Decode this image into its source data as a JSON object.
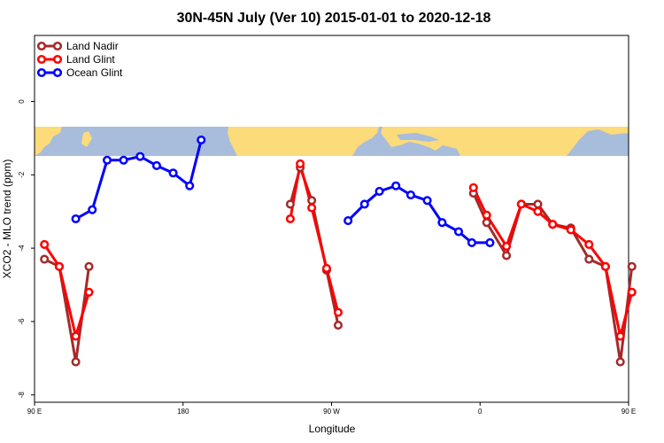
{
  "chart_data": {
    "type": "line",
    "title": "30N-45N July (Ver 10)   2015-01-01 to 2020-12-18",
    "xlabel": "Longitude",
    "ylabel": "XCO2 - MLO trend (ppm)",
    "xlim": [
      90,
      450
    ],
    "ylim": [
      -8.2,
      1.8
    ],
    "x_ticks": [
      {
        "value": 90,
        "label": "90 E"
      },
      {
        "value": 180,
        "label": "180"
      },
      {
        "value": 270,
        "label": "90 W"
      },
      {
        "value": 360,
        "label": "0"
      },
      {
        "value": 450,
        "label": "90 E"
      },
      {
        "value": 540,
        "label": "180"
      }
    ],
    "y_ticks": [
      {
        "value": 0,
        "label": "0"
      },
      {
        "value": -2,
        "label": "-2"
      },
      {
        "value": -4,
        "label": "-4"
      },
      {
        "value": -6,
        "label": "-6"
      },
      {
        "value": -8,
        "label": "-8"
      }
    ],
    "map_band": {
      "ymin": -1.6,
      "ymax": -0.8,
      "ocean_color": "#a8bcdc",
      "land_color": "#fbdb7a"
    },
    "legend_position": "top-left",
    "grid": false,
    "series": [
      {
        "name": "Land Nadir",
        "color": "#a52a2a",
        "segments": [
          [
            [
              96,
              -4.3
            ],
            [
              105,
              -4.5
            ],
            [
              115,
              -7.1
            ],
            [
              123,
              -4.5
            ]
          ],
          [
            [
              245,
              -2.8
            ],
            [
              251,
              -1.8
            ],
            [
              258,
              -2.7
            ],
            [
              267,
              -4.6
            ],
            [
              274,
              -6.1
            ]
          ],
          [
            [
              356,
              -2.5
            ],
            [
              364,
              -3.3
            ],
            [
              376,
              -4.2
            ],
            [
              385,
              -2.8
            ],
            [
              395,
              -2.8
            ],
            [
              404,
              -3.35
            ],
            [
              415,
              -3.45
            ],
            [
              426,
              -4.3
            ],
            [
              436,
              -4.5
            ],
            [
              445,
              -7.1
            ],
            [
              452,
              -4.5
            ]
          ]
        ]
      },
      {
        "name": "Land Glint",
        "color": "#ff0000",
        "segments": [
          [
            [
              96,
              -3.9
            ],
            [
              105,
              -4.5
            ],
            [
              115,
              -6.4
            ],
            [
              123,
              -5.2
            ]
          ],
          [
            [
              245,
              -3.2
            ],
            [
              251,
              -1.7
            ],
            [
              258,
              -2.9
            ],
            [
              267,
              -4.55
            ],
            [
              274,
              -5.75
            ]
          ],
          [
            [
              356,
              -2.35
            ],
            [
              364,
              -3.1
            ],
            [
              376,
              -3.95
            ],
            [
              385,
              -2.8
            ],
            [
              395,
              -3.0
            ],
            [
              404,
              -3.35
            ],
            [
              415,
              -3.5
            ],
            [
              426,
              -3.9
            ],
            [
              436,
              -4.5
            ],
            [
              445,
              -6.4
            ],
            [
              452,
              -5.2
            ]
          ]
        ]
      },
      {
        "name": "Ocean Glint",
        "color": "#0000ff",
        "segments": [
          [
            [
              115,
              -3.2
            ],
            [
              125,
              -2.95
            ],
            [
              134,
              -1.6
            ],
            [
              144,
              -1.6
            ],
            [
              154,
              -1.5
            ],
            [
              164,
              -1.75
            ],
            [
              174,
              -1.95
            ],
            [
              184,
              -2.3
            ],
            [
              191,
              -1.05
            ]
          ],
          [
            [
              280,
              -3.25
            ],
            [
              290,
              -2.8
            ],
            [
              299,
              -2.45
            ],
            [
              309,
              -2.3
            ],
            [
              318,
              -2.55
            ],
            [
              328,
              -2.7
            ],
            [
              337,
              -3.3
            ],
            [
              347,
              -3.55
            ],
            [
              355,
              -3.85
            ],
            [
              366,
              -3.85
            ]
          ]
        ]
      }
    ]
  }
}
